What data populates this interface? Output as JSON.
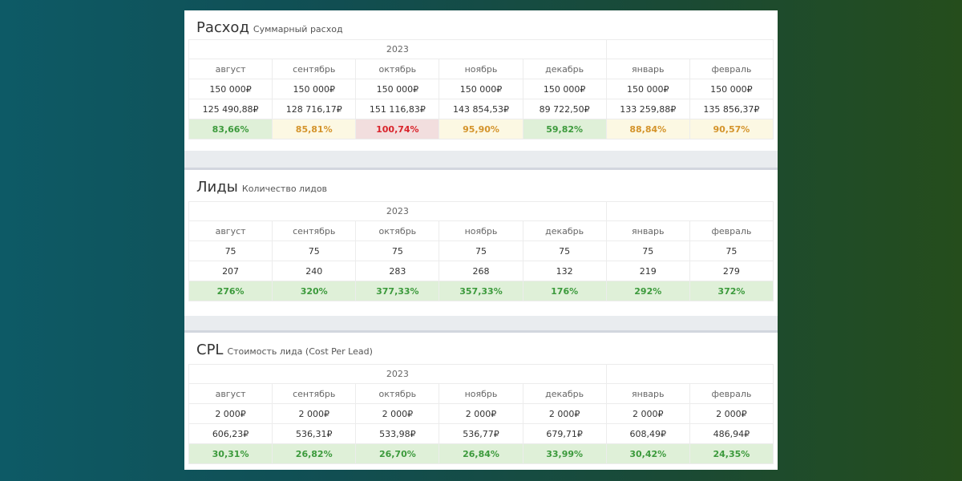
{
  "colors": {
    "good_bg": "#dff0d8",
    "good_text": "#3c9a3c",
    "warn_bg": "#fcf8e3",
    "warn_text": "#d4932a",
    "bad_bg": "#f2dede",
    "bad_text": "#d9232b"
  },
  "panels": [
    {
      "title": "Расход",
      "subtitle": "Суммарный расход",
      "year": "2023",
      "months": [
        "август",
        "сентябрь",
        "октябрь",
        "ноябрь",
        "декабрь",
        "январь",
        "февраль"
      ],
      "plan": [
        "150 000₽",
        "150 000₽",
        "150 000₽",
        "150 000₽",
        "150 000₽",
        "150 000₽",
        "150 000₽"
      ],
      "fact": [
        "125 490,88₽",
        "128 716,17₽",
        "151 116,83₽",
        "143 854,53₽",
        "89 722,50₽",
        "133 259,88₽",
        "135 856,37₽"
      ],
      "percent": [
        "83,66%",
        "85,81%",
        "100,74%",
        "95,90%",
        "59,82%",
        "88,84%",
        "90,57%"
      ],
      "status": [
        "good",
        "warn",
        "bad",
        "warn",
        "good",
        "warn",
        "warn"
      ]
    },
    {
      "title": "Лиды",
      "subtitle": "Количество лидов",
      "year": "2023",
      "months": [
        "август",
        "сентябрь",
        "октябрь",
        "ноябрь",
        "декабрь",
        "январь",
        "февраль"
      ],
      "plan": [
        "75",
        "75",
        "75",
        "75",
        "75",
        "75",
        "75"
      ],
      "fact": [
        "207",
        "240",
        "283",
        "268",
        "132",
        "219",
        "279"
      ],
      "percent": [
        "276%",
        "320%",
        "377,33%",
        "357,33%",
        "176%",
        "292%",
        "372%"
      ],
      "status": [
        "good",
        "good",
        "good",
        "good",
        "good",
        "good",
        "good"
      ]
    },
    {
      "title": "CPL",
      "subtitle": "Стоимость лида (Cost Per Lead)",
      "year": "2023",
      "months": [
        "август",
        "сентябрь",
        "октябрь",
        "ноябрь",
        "декабрь",
        "январь",
        "февраль"
      ],
      "plan": [
        "2 000₽",
        "2 000₽",
        "2 000₽",
        "2 000₽",
        "2 000₽",
        "2 000₽",
        "2 000₽"
      ],
      "fact": [
        "606,23₽",
        "536,31₽",
        "533,98₽",
        "536,77₽",
        "679,71₽",
        "608,49₽",
        "486,94₽"
      ],
      "percent": [
        "30,31%",
        "26,82%",
        "26,70%",
        "26,84%",
        "33,99%",
        "30,42%",
        "24,35%"
      ],
      "status": [
        "good",
        "good",
        "good",
        "good",
        "good",
        "good",
        "good"
      ]
    }
  ]
}
